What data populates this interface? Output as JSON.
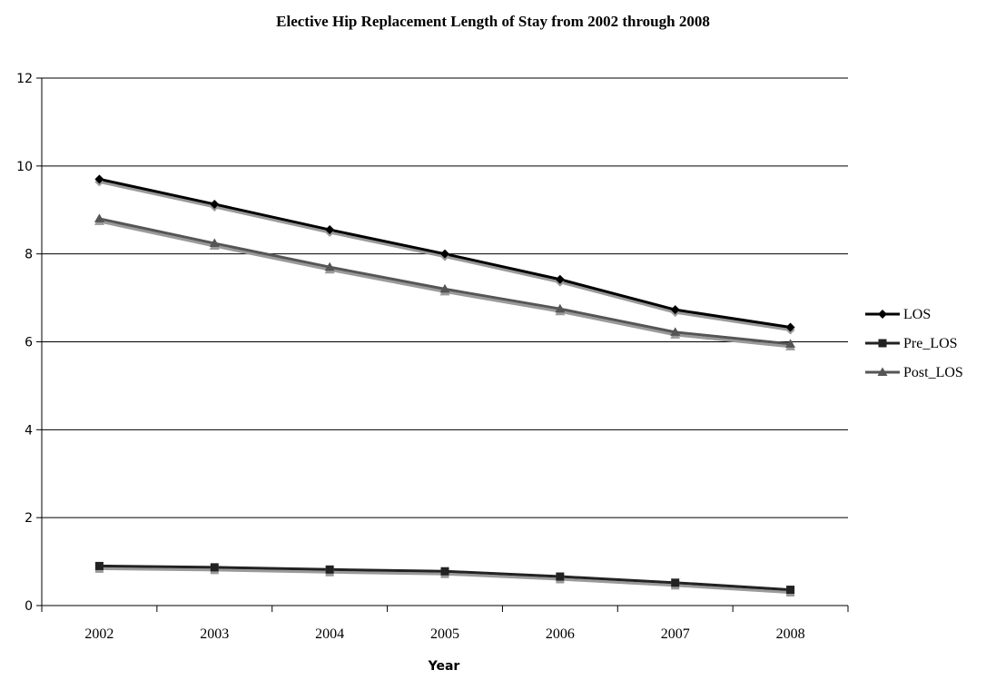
{
  "chart_data": {
    "type": "line",
    "title": "Elective Hip Replacement Length of Stay from 2002 through 2008",
    "xlabel": "Year",
    "ylabel": "",
    "categories": [
      "2002",
      "2003",
      "2004",
      "2005",
      "2006",
      "2007",
      "2008"
    ],
    "ylim": [
      0,
      12
    ],
    "yticks": [
      "0",
      "2",
      "4",
      "6",
      "8",
      "10",
      "12"
    ],
    "grid": "horizontal",
    "legend_position": "right",
    "series": [
      {
        "name": "LOS",
        "marker": "diamond",
        "color": "#000000",
        "values": [
          9.7,
          9.13,
          8.55,
          8.0,
          7.42,
          6.73,
          6.33
        ]
      },
      {
        "name": "Pre_LOS",
        "marker": "square",
        "color": "#222222",
        "values": [
          0.9,
          0.87,
          0.82,
          0.78,
          0.66,
          0.52,
          0.36
        ]
      },
      {
        "name": "Post_LOS",
        "marker": "triangle",
        "color": "#555555",
        "values": [
          8.8,
          8.24,
          7.7,
          7.2,
          6.75,
          6.22,
          5.95
        ]
      }
    ]
  }
}
